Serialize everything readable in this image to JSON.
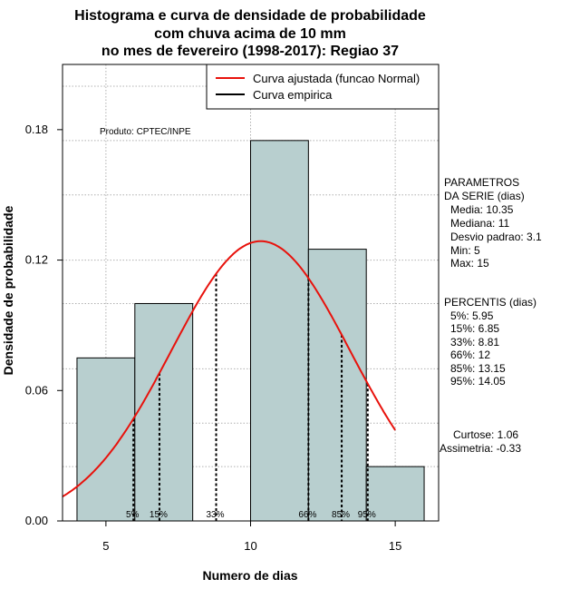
{
  "chart_data": {
    "type": "bar",
    "title": [
      "Histograma e curva de densidade de probabilidade",
      "com chuva acima de 10 mm",
      "no mes de fevereiro (1998-2017): Regiao 37"
    ],
    "xlabel": "Numero de dias",
    "ylabel": "Densidade de probabilidade",
    "xlim": [
      3.5,
      16.5
    ],
    "ylim": [
      0,
      0.21
    ],
    "xticks": [
      5,
      10,
      15
    ],
    "yticks": [
      0.0,
      0.06,
      0.12,
      0.18
    ],
    "ytick_labels": [
      "0.00",
      "0.06",
      "0.12",
      "0.18"
    ],
    "bins": [
      {
        "start": 4,
        "end": 6,
        "density": 0.075
      },
      {
        "start": 6,
        "end": 8,
        "density": 0.1
      },
      {
        "start": 8,
        "end": 10,
        "density": 0.0
      },
      {
        "start": 10,
        "end": 12,
        "density": 0.175
      },
      {
        "start": 12,
        "end": 14,
        "density": 0.125
      },
      {
        "start": 14,
        "end": 16,
        "density": 0.025
      }
    ],
    "normal_curve": {
      "mean": 10.35,
      "sd": 3.1,
      "x_start": 3.5,
      "x_end": 15.0
    },
    "percentiles": [
      {
        "label": "5%",
        "x": 5.95
      },
      {
        "label": "15%",
        "x": 6.85
      },
      {
        "label": "33%",
        "x": 8.81
      },
      {
        "label": "66%",
        "x": 12
      },
      {
        "label": "85%",
        "x": 13.15
      },
      {
        "label": "95%",
        "x": 14.05
      }
    ],
    "legend": [
      {
        "label": "Curva ajustada (funcao Normal)",
        "color": "#e8120c"
      },
      {
        "label": "Curva empirica",
        "color": "#000000"
      }
    ],
    "legend_position": "top-right",
    "annotation": "Produto: CPTEC/INPE",
    "colors": {
      "bar_fill": "#b8cfcf",
      "curve": "#e8120c",
      "grid": "#b0b0b0"
    }
  },
  "side_panel": {
    "parametros": [
      "PARAMETROS",
      "DA SERIE (dias)",
      "Media: 10.35",
      "Mediana: 11",
      "Desvio padrao: 3.1",
      "Min: 5",
      "Max: 15"
    ],
    "percentis": [
      "PERCENTIS (dias)",
      "5%: 5.95",
      "15%: 6.85",
      "33%: 8.81",
      "66%: 12",
      "85%: 13.15",
      "95%: 14.05"
    ],
    "curtose": "Curtose: 1.06",
    "assimetria": "Assimetria: -0.33"
  }
}
